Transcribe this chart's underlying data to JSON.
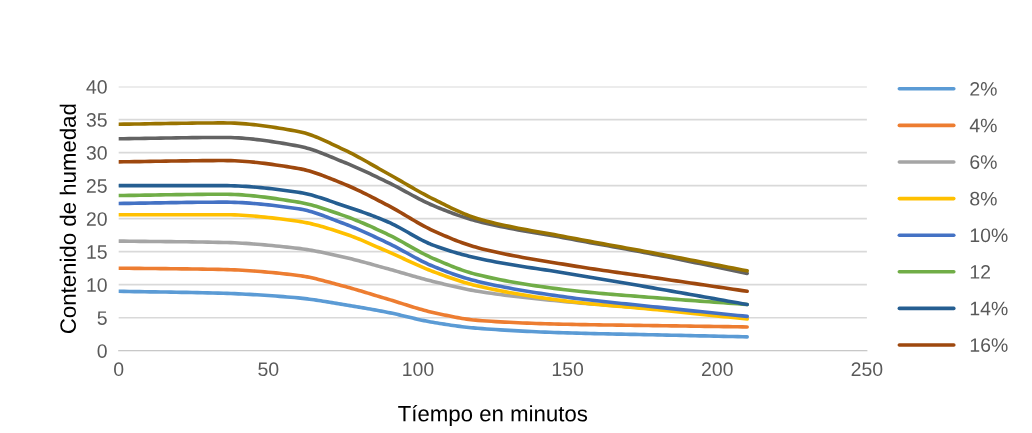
{
  "chart_data": {
    "type": "line",
    "xlabel": "Tíempo en minutos",
    "ylabel": "Contenido de humedad",
    "x": [
      0,
      35,
      60,
      75,
      90,
      105,
      120,
      150,
      180,
      210
    ],
    "xlim": [
      0,
      250
    ],
    "xticks": [
      0,
      50,
      100,
      150,
      200,
      250
    ],
    "ylim": [
      0,
      40
    ],
    "yticks": [
      0,
      5,
      10,
      15,
      20,
      25,
      30,
      35,
      40
    ],
    "grid": "y",
    "legend": "right",
    "marker": "none",
    "line_style": "solid",
    "series": [
      {
        "name": "2%",
        "color": "#5b9bd5",
        "values": [
          9.0,
          8.7,
          8.0,
          7.0,
          5.8,
          4.3,
          3.4,
          2.7,
          2.4,
          2.1
        ]
      },
      {
        "name": "4%",
        "color": "#ed7d31",
        "values": [
          12.5,
          12.3,
          11.4,
          9.8,
          7.8,
          5.8,
          4.6,
          4.0,
          3.8,
          3.6
        ]
      },
      {
        "name": "6%",
        "color": "#a5a5a5",
        "values": [
          16.6,
          16.4,
          15.5,
          14.2,
          12.4,
          10.5,
          9.0,
          7.4,
          6.3,
          5.0
        ]
      },
      {
        "name": "8%",
        "color": "#ffc000",
        "values": [
          20.6,
          20.6,
          19.6,
          17.8,
          15.0,
          12.0,
          9.8,
          7.5,
          6.2,
          4.8
        ]
      },
      {
        "name": "10%",
        "color": "#4472c4",
        "values": [
          22.3,
          22.5,
          21.5,
          19.3,
          16.3,
          12.8,
          10.5,
          8.1,
          6.6,
          5.2
        ]
      },
      {
        "name": "12",
        "color": "#70ad47",
        "values": [
          23.5,
          23.7,
          22.5,
          20.5,
          17.6,
          14.0,
          11.5,
          9.2,
          8.0,
          7.0
        ]
      },
      {
        "name": "14%",
        "color": "#255e91",
        "values": [
          25.0,
          25.0,
          24.0,
          22.0,
          19.5,
          16.0,
          14.0,
          11.7,
          9.4,
          7.0
        ]
      },
      {
        "name": "16%",
        "color": "#9e480e",
        "values": [
          28.6,
          28.8,
          27.6,
          25.3,
          22.0,
          18.2,
          15.6,
          13.0,
          11.0,
          9.0
        ]
      },
      {
        "color": "#636363",
        "values": [
          32.1,
          32.3,
          31.0,
          28.6,
          25.5,
          22.0,
          19.6,
          17.0,
          14.5,
          11.7
        ]
      },
      {
        "color": "#997300",
        "values": [
          34.3,
          34.5,
          33.2,
          30.5,
          26.8,
          23.0,
          20.0,
          17.2,
          14.7,
          12.1
        ]
      }
    ]
  }
}
